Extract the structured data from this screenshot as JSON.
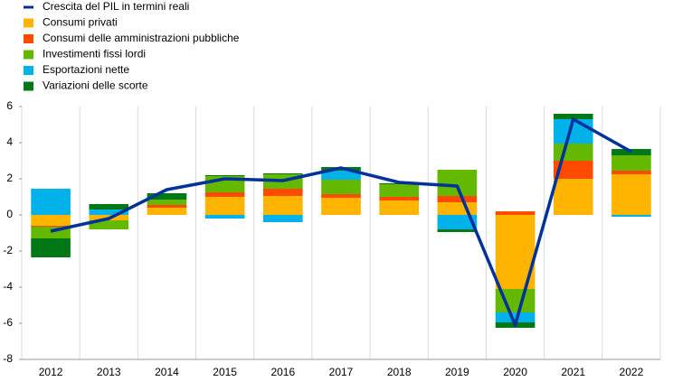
{
  "chart_data": {
    "type": "bar",
    "categories": [
      "2012",
      "2013",
      "2014",
      "2015",
      "2016",
      "2017",
      "2018",
      "2019",
      "2020",
      "2021",
      "2022"
    ],
    "series": [
      {
        "name": "Crescita del PIL in termini reali",
        "type": "line",
        "color": "#003299",
        "values": [
          -0.9,
          -0.2,
          1.4,
          2.0,
          1.9,
          2.6,
          1.8,
          1.6,
          -6.1,
          5.3,
          3.5
        ]
      },
      {
        "name": "Consumi privati",
        "color": "#ffb400",
        "values": [
          -0.6,
          -0.3,
          0.4,
          1.0,
          1.05,
          0.95,
          0.8,
          0.7,
          -4.1,
          2.0,
          2.25
        ]
      },
      {
        "name": "Consumi delle amministrazioni pubbliche",
        "color": "#ff4b00",
        "values": [
          -0.05,
          0.0,
          0.15,
          0.25,
          0.4,
          0.2,
          0.2,
          0.35,
          0.2,
          1.0,
          0.2
        ]
      },
      {
        "name": "Investimenti fissi lordi",
        "color": "#65b800",
        "values": [
          -0.65,
          -0.5,
          0.3,
          0.9,
          0.8,
          0.8,
          0.7,
          1.45,
          -1.3,
          0.95,
          0.85
        ]
      },
      {
        "name": "Esportazioni nette",
        "color": "#00b1ea",
        "values": [
          1.45,
          0.3,
          0.0,
          -0.2,
          -0.4,
          0.5,
          0.0,
          -0.8,
          -0.55,
          1.35,
          -0.1
        ]
      },
      {
        "name": "Variazioni delle scorte",
        "color": "#007816",
        "values": [
          -1.05,
          0.3,
          0.35,
          0.05,
          0.05,
          0.2,
          0.05,
          -0.15,
          -0.3,
          0.3,
          0.35
        ]
      }
    ],
    "ylim": [
      -8,
      6
    ],
    "yticks": [
      -8,
      -6,
      -4,
      -2,
      0,
      2,
      4,
      6
    ],
    "grid": true,
    "legend": "top-left"
  }
}
